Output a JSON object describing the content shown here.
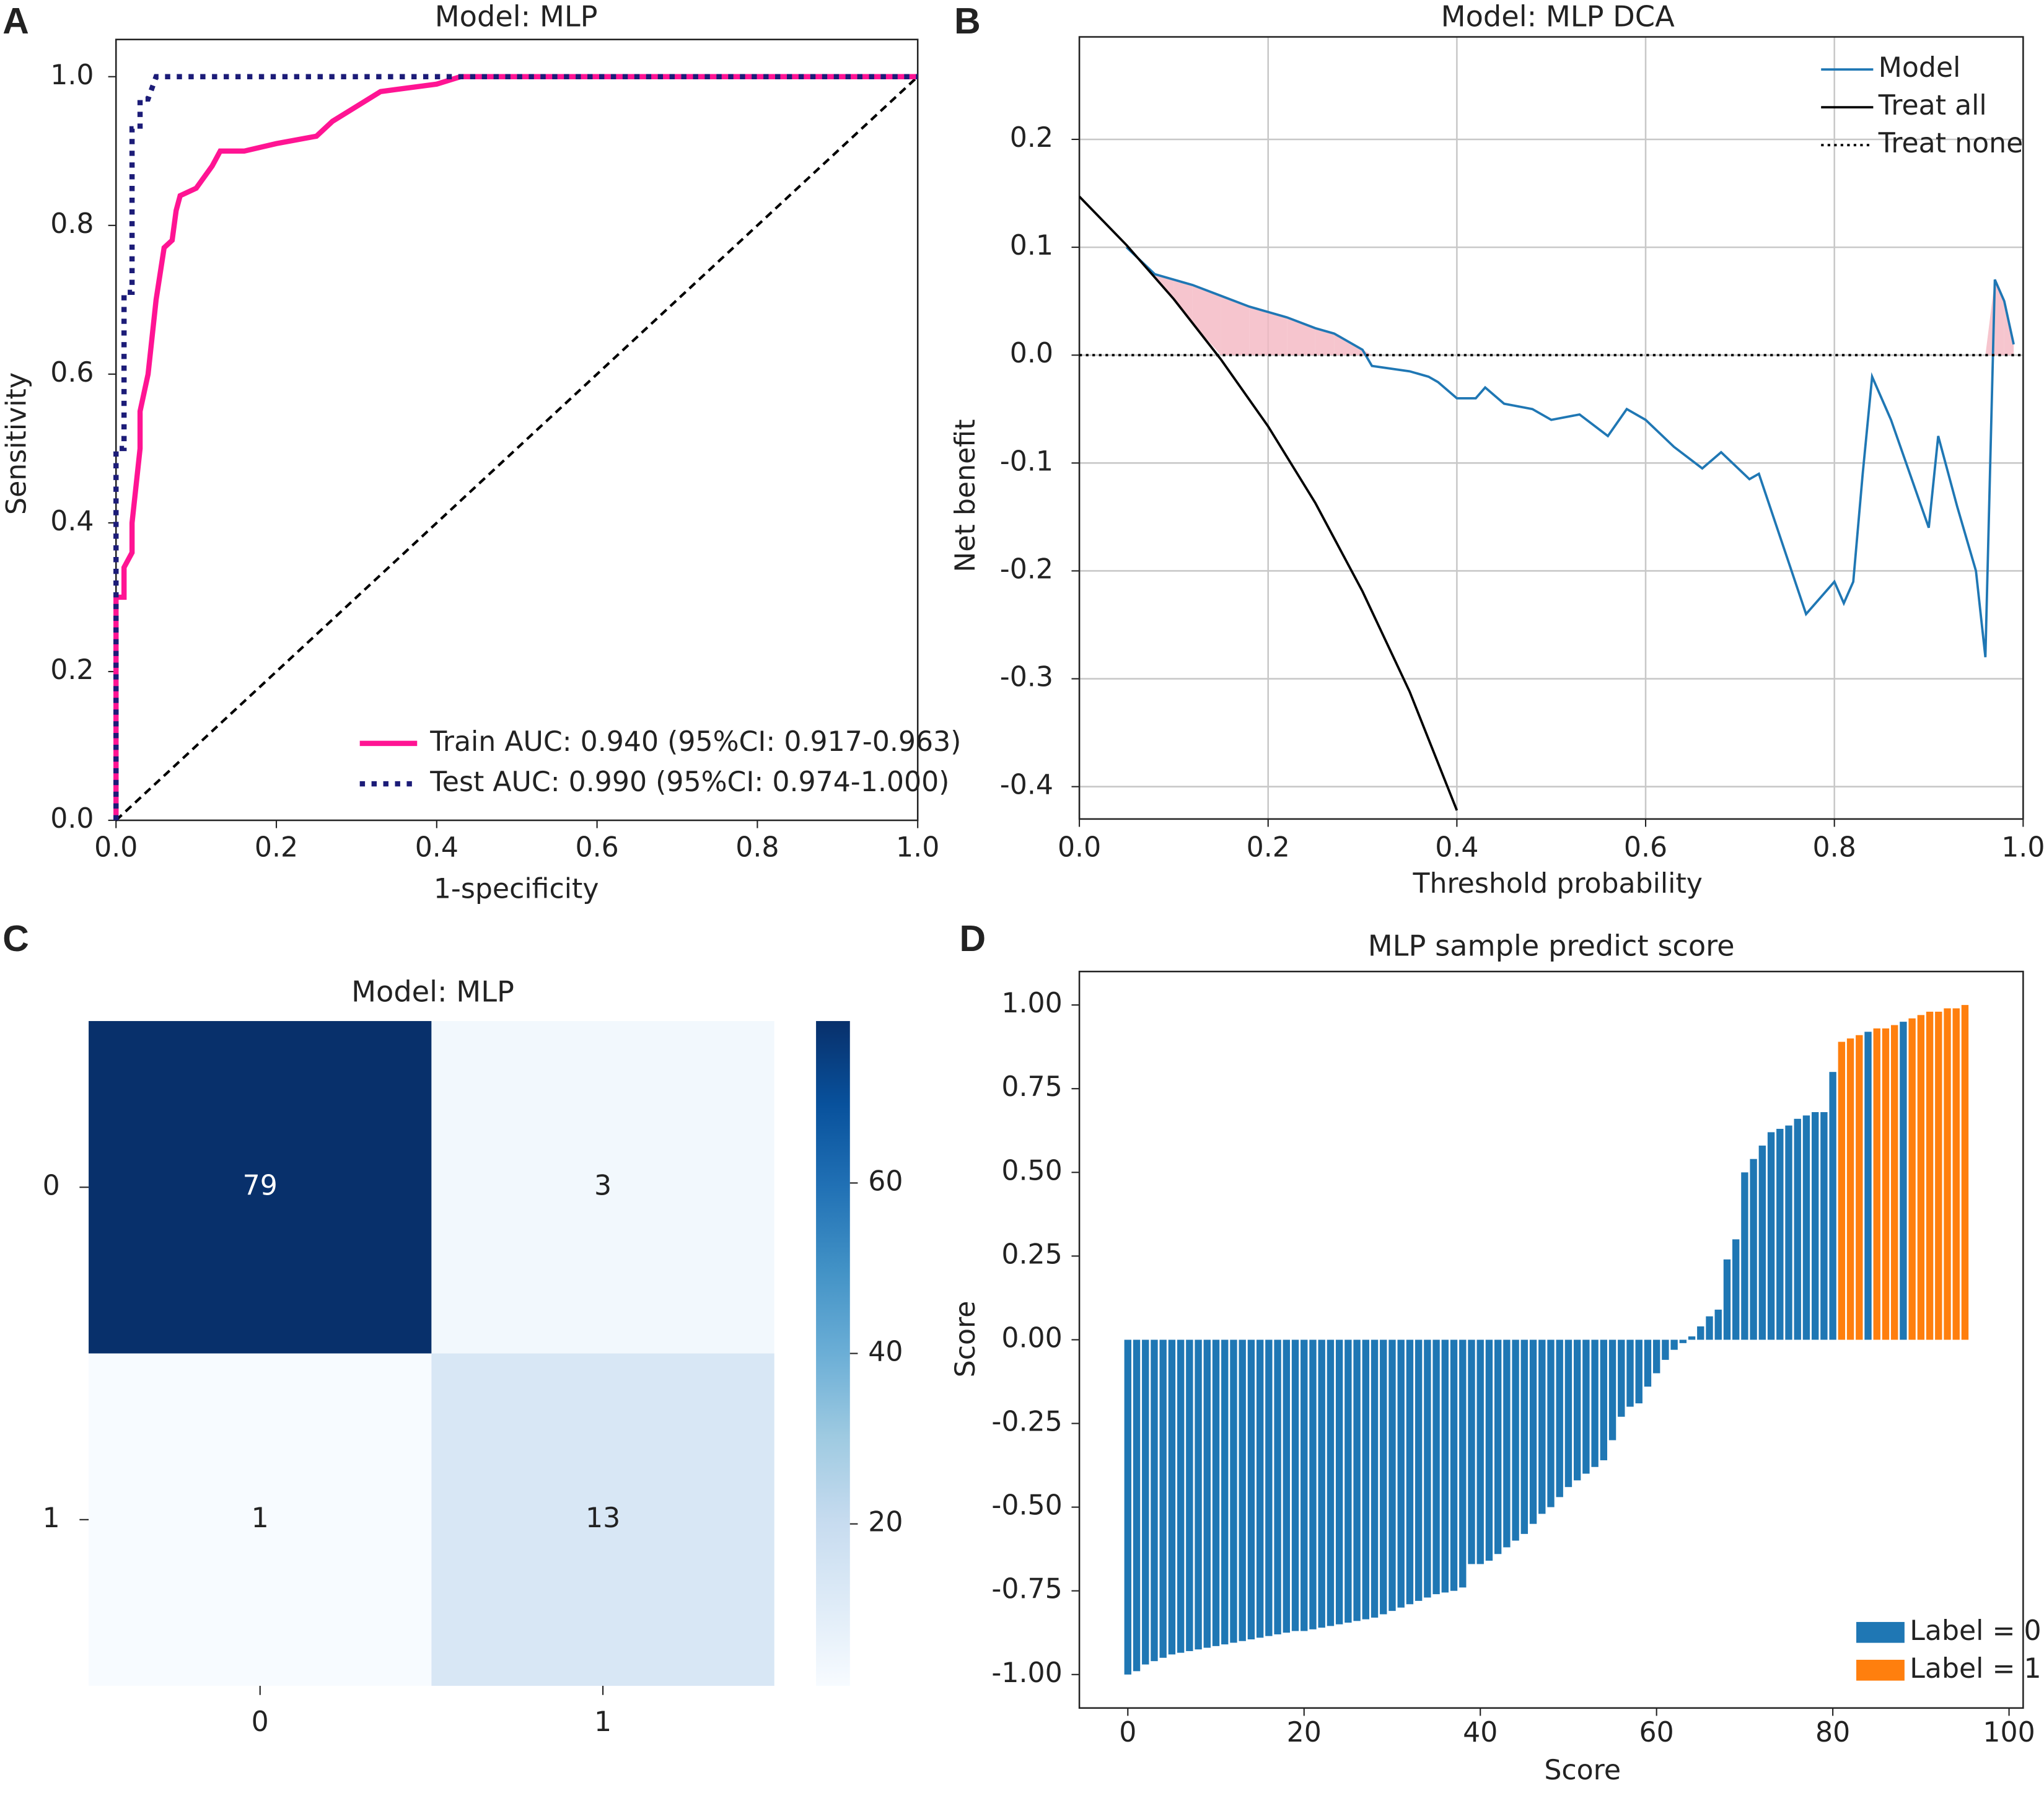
{
  "chart_data": [
    {
      "type": "line",
      "panel_label": "A",
      "title": "Model: MLP",
      "xlabel": "1-specificity",
      "ylabel": "Sensitivity",
      "xlim": [
        0,
        1
      ],
      "ylim": [
        0,
        1.05
      ],
      "xticks": [
        {
          "value": 0,
          "label": "0.0"
        },
        0.2,
        0.4,
        0.6,
        0.8,
        {
          "value": 1,
          "label": "1.0"
        }
      ],
      "yticks": [
        {
          "value": 0,
          "label": "0.0"
        },
        0.2,
        0.4,
        0.6,
        0.8,
        {
          "value": 1,
          "label": "1.0"
        }
      ],
      "diagonal": true,
      "legend": "lower right",
      "series": [
        {
          "name": "Train AUC: 0.940 (95%CI: 0.917-0.963)",
          "color": "#ff1493",
          "style": "solid",
          "x": [
            0,
            0,
            0.01,
            0.01,
            0.02,
            0.02,
            0.025,
            0.03,
            0.03,
            0.04,
            0.045,
            0.05,
            0.06,
            0.07,
            0.075,
            0.08,
            0.1,
            0.12,
            0.13,
            0.16,
            0.2,
            0.25,
            0.27,
            0.3,
            0.33,
            0.4,
            0.43,
            1
          ],
          "values": [
            0,
            0.3,
            0.3,
            0.34,
            0.36,
            0.4,
            0.45,
            0.5,
            0.55,
            0.6,
            0.65,
            0.7,
            0.77,
            0.78,
            0.82,
            0.84,
            0.85,
            0.88,
            0.9,
            0.9,
            0.91,
            0.92,
            0.94,
            0.96,
            0.98,
            0.99,
            1,
            1
          ]
        },
        {
          "name": "Test AUC: 0.990 (95%CI: 0.974-1.000)",
          "color": "#1c1c78",
          "style": "dotted",
          "x": [
            0,
            0,
            0.01,
            0.01,
            0.02,
            0.02,
            0.03,
            0.03,
            0.04,
            0.05,
            1
          ],
          "values": [
            0,
            0.5,
            0.5,
            0.71,
            0.71,
            0.93,
            0.93,
            0.97,
            0.97,
            1,
            1
          ]
        }
      ]
    },
    {
      "type": "line",
      "panel_label": "B",
      "title": "Model: MLP DCA",
      "xlabel": "Threshold probability",
      "ylabel": "Net benefit",
      "xlim": [
        0,
        1
      ],
      "ylim": [
        -0.43,
        0.295
      ],
      "xticks": [
        {
          "value": 0,
          "label": "0.0"
        },
        0.2,
        0.4,
        0.6,
        0.8,
        {
          "value": 1,
          "label": "1.0"
        }
      ],
      "yticks": [
        0.2,
        0.1,
        {
          "value": 0,
          "label": "0.0"
        },
        -0.1,
        -0.2,
        -0.3,
        -0.4
      ],
      "grid": true,
      "legend": "upper right",
      "benefit_fill": "#f4b6c2",
      "series": [
        {
          "name": "Model",
          "color": "#1f77b4",
          "style": "solid",
          "x": [
            0.05,
            0.08,
            0.1,
            0.12,
            0.15,
            0.18,
            0.2,
            0.22,
            0.25,
            0.27,
            0.3,
            0.31,
            0.35,
            0.37,
            0.38,
            0.4,
            0.42,
            0.43,
            0.45,
            0.48,
            0.5,
            0.53,
            0.56,
            0.58,
            0.6,
            0.63,
            0.66,
            0.68,
            0.71,
            0.72,
            0.77,
            0.8,
            0.81,
            0.82,
            0.83,
            0.84,
            0.86,
            0.88,
            0.9,
            0.91,
            0.93,
            0.95,
            0.96,
            0.97,
            0.98,
            0.99
          ],
          "values": [
            0.1,
            0.075,
            0.07,
            0.065,
            0.055,
            0.045,
            0.04,
            0.035,
            0.025,
            0.02,
            0.005,
            -0.01,
            -0.015,
            -0.02,
            -0.025,
            -0.04,
            -0.04,
            -0.03,
            -0.045,
            -0.05,
            -0.06,
            -0.055,
            -0.075,
            -0.05,
            -0.06,
            -0.085,
            -0.105,
            -0.09,
            -0.115,
            -0.11,
            -0.24,
            -0.21,
            -0.23,
            -0.21,
            -0.11,
            -0.02,
            -0.06,
            -0.11,
            -0.16,
            -0.075,
            -0.14,
            -0.2,
            -0.28,
            0.07,
            0.05,
            0.01
          ]
        },
        {
          "name": "Treat all",
          "color": "#000000",
          "style": "solid",
          "x": [
            0,
            0.05,
            0.1,
            0.15,
            0.2,
            0.25,
            0.3,
            0.35,
            0.4
          ],
          "values": [
            0.147,
            0.102,
            0.052,
            -0.004,
            -0.066,
            -0.137,
            -0.219,
            -0.312,
            -0.422
          ]
        },
        {
          "name": "Treat none",
          "color": "#000000",
          "style": "dotted",
          "x": [
            0,
            1
          ],
          "values": [
            0,
            0
          ]
        }
      ]
    },
    {
      "type": "heatmap",
      "panel_label": "C",
      "title": "Model: MLP",
      "xcategories": [
        "0",
        "1"
      ],
      "ycategories": [
        "0",
        "1"
      ],
      "values": [
        [
          79,
          3
        ],
        [
          1,
          13
        ]
      ],
      "clim": [
        1,
        79
      ],
      "colorbar_ticks": [
        20,
        40,
        60
      ],
      "colormap": "Blues"
    },
    {
      "type": "bar",
      "panel_label": "D",
      "title": "MLP sample predict score",
      "xlabel": "Score",
      "ylabel": "Score",
      "xlim": [
        -5.5,
        101.6
      ],
      "ylim": [
        -1.1,
        1.1
      ],
      "xticks": [
        0,
        20,
        40,
        60,
        80,
        100
      ],
      "yticks": [
        {
          "value": 1,
          "label": "1.00"
        },
        {
          "value": 0.75,
          "label": "0.75"
        },
        {
          "value": 0.5,
          "label": "0.50"
        },
        {
          "value": 0.25,
          "label": "0.25"
        },
        {
          "value": 0,
          "label": "0.00"
        },
        {
          "value": -0.25,
          "label": "-0.25"
        },
        {
          "value": -0.5,
          "label": "-0.50"
        },
        {
          "value": -0.75,
          "label": "-0.75"
        },
        {
          "value": -1,
          "label": "-1.00"
        }
      ],
      "legend": "lower right",
      "x": [
        0,
        1,
        2,
        3,
        4,
        5,
        6,
        7,
        8,
        9,
        10,
        11,
        12,
        13,
        14,
        15,
        16,
        17,
        18,
        19,
        20,
        21,
        22,
        23,
        24,
        25,
        26,
        27,
        28,
        29,
        30,
        31,
        32,
        33,
        34,
        35,
        36,
        37,
        38,
        39,
        40,
        41,
        42,
        43,
        44,
        45,
        46,
        47,
        48,
        49,
        50,
        51,
        52,
        53,
        54,
        55,
        56,
        57,
        58,
        59,
        60,
        61,
        62,
        63,
        64,
        65,
        66,
        67,
        68,
        69,
        70,
        71,
        72,
        73,
        74,
        75,
        76,
        77,
        78,
        79,
        80,
        81,
        82,
        83,
        84,
        85,
        86,
        87,
        88,
        89,
        90,
        91,
        92,
        93,
        94,
        95
      ],
      "series": [
        {
          "name": "Label = 0",
          "color": "#1f77b4",
          "values": [
            -1,
            -0.99,
            -0.97,
            -0.96,
            -0.95,
            -0.94,
            -0.935,
            -0.93,
            -0.925,
            -0.92,
            -0.915,
            -0.91,
            -0.905,
            -0.9,
            -0.895,
            -0.89,
            -0.885,
            -0.88,
            -0.875,
            -0.87,
            -0.87,
            -0.865,
            -0.86,
            -0.855,
            -0.85,
            -0.845,
            -0.84,
            -0.835,
            -0.83,
            -0.82,
            -0.81,
            -0.8,
            -0.79,
            -0.78,
            -0.77,
            -0.76,
            -0.755,
            -0.75,
            -0.74,
            -0.67,
            -0.67,
            -0.66,
            -0.64,
            -0.62,
            -0.6,
            -0.58,
            -0.55,
            -0.52,
            -0.5,
            -0.47,
            -0.44,
            -0.42,
            -0.4,
            -0.38,
            -0.36,
            -0.3,
            -0.23,
            -0.2,
            -0.19,
            -0.14,
            -0.1,
            -0.06,
            -0.03,
            -0.01,
            0.01,
            0.04,
            0.07,
            0.09,
            0.24,
            0.3,
            0.5,
            0.54,
            0.58,
            0.62,
            0.63,
            0.64,
            0.66,
            0.67,
            0.68,
            0.68,
            0.8,
            null,
            null,
            null,
            0.92,
            null,
            null,
            null,
            0.95,
            null,
            null,
            null,
            null,
            null,
            null,
            null
          ]
        },
        {
          "name": "Label = 1",
          "color": "#ff7f0e",
          "values": [
            null,
            null,
            null,
            null,
            null,
            null,
            null,
            null,
            null,
            null,
            null,
            null,
            null,
            null,
            null,
            null,
            null,
            null,
            null,
            null,
            null,
            null,
            null,
            null,
            null,
            null,
            null,
            null,
            null,
            null,
            null,
            null,
            null,
            null,
            null,
            null,
            null,
            null,
            null,
            null,
            null,
            null,
            null,
            null,
            null,
            null,
            null,
            null,
            null,
            null,
            null,
            null,
            null,
            null,
            null,
            null,
            null,
            null,
            null,
            null,
            null,
            null,
            null,
            null,
            null,
            null,
            null,
            null,
            null,
            null,
            null,
            null,
            null,
            null,
            null,
            null,
            null,
            null,
            null,
            null,
            null,
            0.89,
            0.9,
            0.91,
            null,
            0.93,
            0.93,
            0.94,
            null,
            0.96,
            0.97,
            0.98,
            0.98,
            0.99,
            0.99,
            1
          ]
        }
      ]
    }
  ]
}
